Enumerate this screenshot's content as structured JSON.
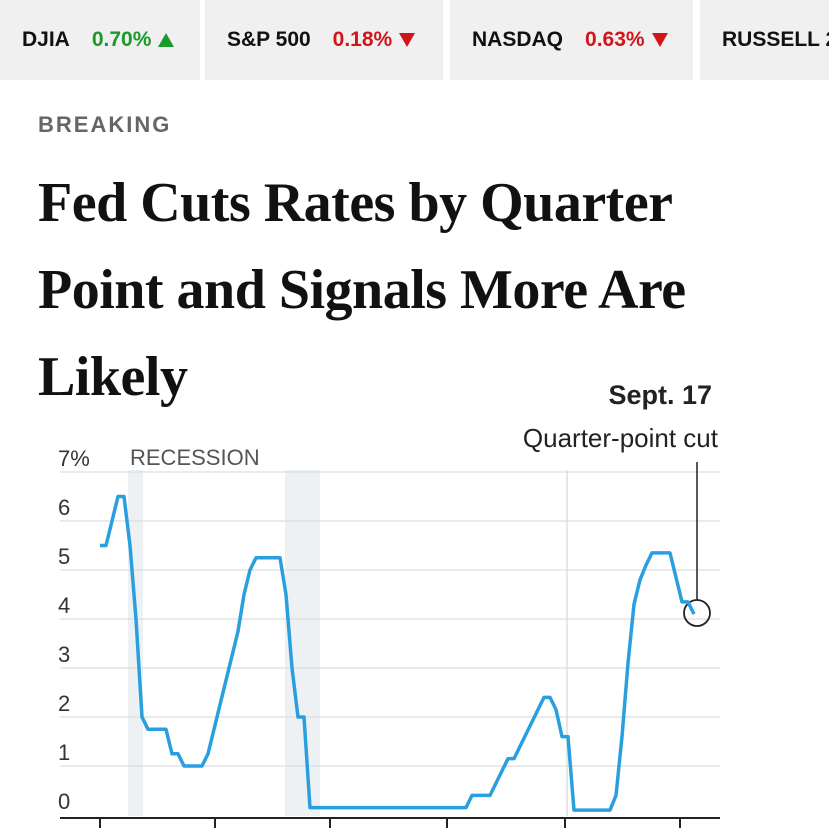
{
  "ticker": [
    {
      "symbol": "DJIA",
      "change": "0.70%",
      "direction": "up"
    },
    {
      "symbol": "S&P 500",
      "change": "0.18%",
      "direction": "down"
    },
    {
      "symbol": "NASDAQ",
      "change": "0.63%",
      "direction": "down"
    },
    {
      "symbol": "RUSSELL 2",
      "change": null,
      "direction": null
    }
  ],
  "label": "BREAKING",
  "headline": "Fed Cuts Rates by Quarter Point and Signals More Are Likely",
  "chart": {
    "type": "line",
    "color": "#2a9fe0",
    "values": [
      5.5,
      5.5,
      6,
      6.5,
      6.5,
      5.5,
      4,
      2,
      1.75,
      1.75,
      1.75,
      1.75,
      1.25,
      1.25,
      1,
      1,
      1,
      1,
      1.25,
      1.75,
      2.25,
      2.75,
      3.25,
      3.75,
      4.5,
      5,
      5.25,
      5.25,
      5.25,
      5.25,
      5.25,
      4.5,
      3,
      2,
      2,
      0.15,
      0.15,
      0.15,
      0.15,
      0.15,
      0.15,
      0.15,
      0.15,
      0.15,
      0.15,
      0.15,
      0.15,
      0.15,
      0.15,
      0.15,
      0.15,
      0.15,
      0.15,
      0.15,
      0.15,
      0.15,
      0.15,
      0.15,
      0.15,
      0.15,
      0.15,
      0.15,
      0.4,
      0.4,
      0.4,
      0.4,
      0.65,
      0.9,
      1.15,
      1.15,
      1.4,
      1.65,
      1.9,
      2.15,
      2.4,
      2.4,
      2.15,
      1.6,
      1.6,
      0.1,
      0.1,
      0.1,
      0.1,
      0.1,
      0.1,
      0.1,
      0.4,
      1.6,
      3.1,
      4.3,
      4.8,
      5.1,
      5.35,
      5.35,
      5.35,
      5.35,
      4.85,
      4.35,
      4.35,
      4.1
    ],
    "ylim": [
      0,
      7
    ],
    "yticks": [
      0,
      1,
      2,
      3,
      4,
      5,
      6,
      {
        "value": 7,
        "label": "7%"
      }
    ],
    "grid": true,
    "recession_label": "RECESSION",
    "annotation_date": "Sept. 17",
    "annotation_note": "Quarter-point cut"
  }
}
